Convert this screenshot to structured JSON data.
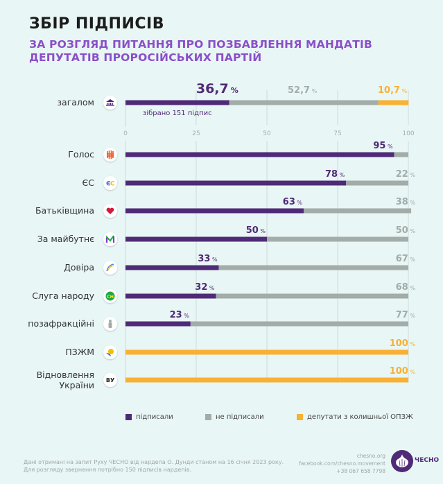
{
  "header": {
    "title": "ЗБІР ПІДПИСІВ",
    "subtitle_line1": "ЗА РОЗГЛЯД ПИТАННЯ ПРО ПОЗБАВЛЕННЯ МАНДАТІВ",
    "subtitle_line2": "ДЕПУТАТІВ ПРОРОСІЙСЬКИХ ПАРТІЙ"
  },
  "colors": {
    "signed": "#4f2a76",
    "not_signed": "#a2aca8",
    "opzj": "#f8b133",
    "grid": "#cbdcda"
  },
  "chart_data": {
    "type": "bar",
    "orientation": "horizontal",
    "stacked": true,
    "title": "ЗБІР ПІДПИСІВ",
    "xlim": [
      0,
      100
    ],
    "xticks": [
      0,
      25,
      50,
      75,
      100
    ],
    "grid": true,
    "legend_position": "bottom",
    "total": {
      "label": "загалом",
      "icon": "parliament-icon",
      "signed": 36.7,
      "signed_label": "36,7",
      "not_signed": 52.7,
      "not_signed_label": "52,7",
      "opzj": 10.7,
      "opzj_label": "10,7",
      "note": "зібрано 151 підпис"
    },
    "categories": [
      "Голос",
      "ЄС",
      "Батьківщина",
      "За майбутнє",
      "Довіра",
      "Слуга народу",
      "позафракційні",
      "ПЗЖМ",
      "Відновлення України"
    ],
    "icons": [
      "golos-icon",
      "es-icon",
      "heart-icon",
      "m-icon",
      "dovira-icon",
      "sn-icon",
      "person-icon",
      "pzjm-icon",
      "vu-icon"
    ],
    "series": [
      {
        "name": "підписали",
        "values": [
          95,
          78,
          63,
          50,
          33,
          32,
          23,
          0,
          0
        ]
      },
      {
        "name": "не підписали",
        "values": [
          5,
          22,
          38,
          50,
          67,
          68,
          77,
          0,
          0
        ]
      },
      {
        "name": "депутати з колишньої ОПЗЖ",
        "values": [
          0,
          0,
          0,
          0,
          0,
          0,
          0,
          100,
          100
        ]
      }
    ],
    "value_labels": {
      "signed": [
        "95",
        "78",
        "63",
        "50",
        "33",
        "32",
        "23",
        null,
        null
      ],
      "not_signed": [
        null,
        "22",
        "38",
        "50",
        "67",
        "68",
        "77",
        null,
        null
      ],
      "opzj": [
        null,
        null,
        null,
        null,
        null,
        null,
        null,
        "100",
        "100"
      ]
    },
    "percent_sign": "%"
  },
  "legend": [
    {
      "label": "підписали",
      "color": "#4f2a76"
    },
    {
      "label": "не підписали",
      "color": "#a2aca8"
    },
    {
      "label": "депутати з колишньої ОПЗЖ",
      "color": "#f8b133"
    }
  ],
  "footer": {
    "note_line1": "Дані отримані на запит Руху ЧЕСНО від нардепа О. Дунди станом на 16 січня 2023 року.",
    "note_line2": "Для розгляду звернення потрібно 150 підписів нардепів.",
    "site": "chesno.org",
    "facebook": "facebook.com/chesno.movement",
    "phone": "+38 067 658 7798",
    "logo_text": "ЧЕСНО"
  }
}
